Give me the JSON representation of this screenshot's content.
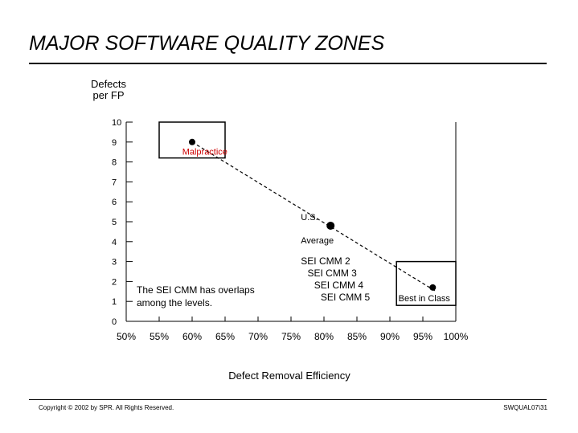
{
  "header": {
    "title": "MAJOR SOFTWARE QUALITY ZONES"
  },
  "footer": {
    "copyright": "Copyright © 2002 by SPR.  All Rights Reserved.",
    "slide_id": "SWQUAL07\\31"
  },
  "chart_data": {
    "type": "scatter",
    "title": "MAJOR SOFTWARE QUALITY ZONES",
    "xlabel": "Defect Removal Efficiency",
    "ylabel": "Defects per FP",
    "ylabel_lines": [
      "Defects",
      "per FP"
    ],
    "xlim": [
      50,
      100
    ],
    "ylim": [
      0,
      10
    ],
    "x_ticks": [
      "50%",
      "55%",
      "60%",
      "65%",
      "70%",
      "75%",
      "80%",
      "85%",
      "90%",
      "95%",
      "100%"
    ],
    "y_ticks": [
      "0",
      "1",
      "2",
      "3",
      "4",
      "5",
      "6",
      "7",
      "8",
      "9",
      "10"
    ],
    "points": [
      {
        "label": "Malpractice",
        "x": 60,
        "y": 9
      },
      {
        "label": "U.S. Average",
        "x": 81,
        "y": 4.8
      },
      {
        "label": "Best in Class",
        "x": 96.5,
        "y": 1.7
      }
    ],
    "zones": [
      {
        "label": "Malpractice",
        "x0": 55,
        "x1": 65,
        "y0": 8.2,
        "y1": 10
      },
      {
        "label": "Best in Class",
        "x0": 91,
        "x1": 100,
        "y0": 0.8,
        "y1": 3
      }
    ],
    "trend_line": {
      "from": [
        60,
        9
      ],
      "to": [
        97,
        1.5
      ],
      "style": "dashed"
    },
    "annotations": {
      "us_average_lines": [
        "U.S.",
        "Average"
      ],
      "sei_levels": [
        "SEI CMM 2",
        "SEI CMM 3",
        "SEI CMM 4",
        "SEI CMM 5"
      ],
      "overlap_note_lines": [
        "The SEI CMM has overlaps",
        "among the levels."
      ],
      "best_in_class": "Best in Class",
      "malpractice": "Malpractice"
    },
    "colors": {
      "malpractice_label": "#cc0000",
      "ink": "#000000"
    }
  }
}
